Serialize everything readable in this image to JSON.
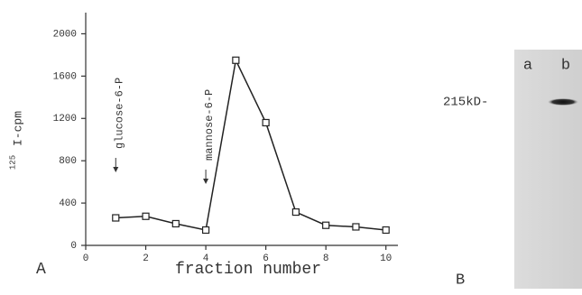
{
  "chart_data": {
    "type": "line",
    "panel_label": "A",
    "xlabel": "fraction number",
    "ylabel_superscript": "125",
    "ylabel": "I-cpm",
    "x": [
      1,
      2,
      3,
      4,
      5,
      6,
      7,
      8,
      9,
      10
    ],
    "values": [
      260,
      275,
      205,
      145,
      1750,
      1160,
      315,
      190,
      175,
      145
    ],
    "color": "#222222",
    "xlim": [
      0,
      10.4
    ],
    "xticks": [
      0,
      2,
      4,
      6,
      8,
      10
    ],
    "ylim": [
      0,
      2200
    ],
    "yticks": [
      0,
      400,
      800,
      1200,
      1600,
      2000
    ],
    "annotations": [
      {
        "text": "glucose-6-P",
        "x": 1
      },
      {
        "text": "mannose-6-P",
        "x": 4
      }
    ]
  },
  "panel_b": {
    "panel_label": "B",
    "lanes": [
      "a",
      "b"
    ],
    "marker": "215kD-"
  }
}
